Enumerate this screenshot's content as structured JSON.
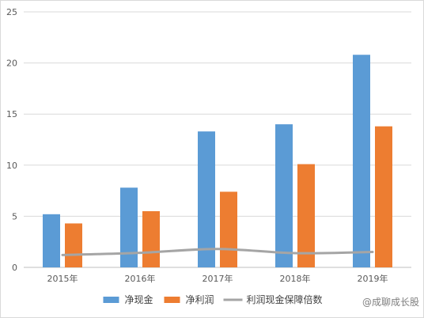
{
  "chart_data": {
    "type": "bar",
    "title": "",
    "xlabel": "",
    "ylabel": "",
    "categories": [
      "2015年",
      "2016年",
      "2017年",
      "2018年",
      "2019年"
    ],
    "ylim": [
      0,
      25
    ],
    "yticks": [
      0,
      5,
      10,
      15,
      20,
      25
    ],
    "grid": true,
    "legend_position": "bottom",
    "series": [
      {
        "name": "净现金",
        "type": "bar",
        "color": "#5B9BD5",
        "values": [
          5.2,
          7.8,
          13.3,
          14.0,
          20.8
        ]
      },
      {
        "name": "净利润",
        "type": "bar",
        "color": "#ED7D31",
        "values": [
          4.3,
          5.5,
          7.4,
          10.1,
          13.8
        ]
      },
      {
        "name": "利润现金保障倍数",
        "type": "line",
        "color": "#A5A5A5",
        "values": [
          1.21,
          1.42,
          1.8,
          1.39,
          1.51
        ]
      }
    ]
  },
  "watermark": "@成聊成长股"
}
